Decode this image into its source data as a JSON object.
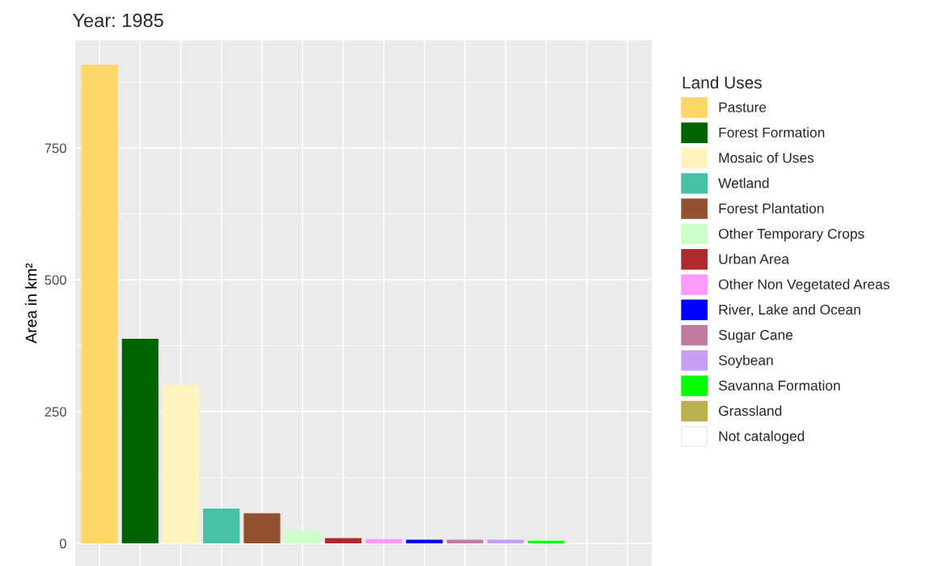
{
  "chart_data": {
    "type": "bar",
    "title": "Year: 1985",
    "ylabel": "Area in km²",
    "legend_title": "Land Uses",
    "categories": [
      null,
      null,
      null,
      null,
      null,
      null,
      null,
      null,
      null,
      null,
      null,
      null,
      null,
      null
    ],
    "series": [
      {
        "name": "Pasture",
        "color": "#fdd768",
        "values": [
          908,
          null,
          null,
          null,
          null,
          null,
          null,
          null,
          null,
          null,
          null,
          null,
          null,
          null
        ]
      },
      {
        "name": "Forest Formation",
        "color": "#006400",
        "values": [
          null,
          388,
          null,
          null,
          null,
          null,
          null,
          null,
          null,
          null,
          null,
          null,
          null,
          null
        ]
      },
      {
        "name": "Mosaic of Uses",
        "color": "#fff3bf",
        "values": [
          null,
          null,
          301,
          null,
          null,
          null,
          null,
          null,
          null,
          null,
          null,
          null,
          null,
          null
        ]
      },
      {
        "name": "Wetland",
        "color": "#45c2a5",
        "values": [
          null,
          null,
          null,
          66,
          null,
          null,
          null,
          null,
          null,
          null,
          null,
          null,
          null,
          null
        ]
      },
      {
        "name": "Forest Plantation",
        "color": "#935132",
        "values": [
          null,
          null,
          null,
          null,
          57,
          null,
          null,
          null,
          null,
          null,
          null,
          null,
          null,
          null
        ]
      },
      {
        "name": "Other Temporary Crops",
        "color": "#ccffcc",
        "values": [
          null,
          null,
          null,
          null,
          null,
          25,
          null,
          null,
          null,
          null,
          null,
          null,
          null,
          null
        ]
      },
      {
        "name": "Urban Area",
        "color": "#af2a2a",
        "values": [
          null,
          null,
          null,
          null,
          null,
          null,
          10,
          null,
          null,
          null,
          null,
          null,
          null,
          null
        ]
      },
      {
        "name": "Other Non Vegetated Areas",
        "color": "#ff99ff",
        "values": [
          null,
          null,
          null,
          null,
          null,
          null,
          null,
          8,
          null,
          null,
          null,
          null,
          null,
          null
        ]
      },
      {
        "name": "River, Lake and Ocean",
        "color": "#0000ff",
        "values": [
          null,
          null,
          null,
          null,
          null,
          null,
          null,
          null,
          7,
          null,
          null,
          null,
          null,
          null
        ]
      },
      {
        "name": "Sugar Cane",
        "color": "#c27ba0",
        "values": [
          null,
          null,
          null,
          null,
          null,
          null,
          null,
          null,
          null,
          7,
          null,
          null,
          null,
          null
        ]
      },
      {
        "name": "Soybean",
        "color": "#c59ff4",
        "values": [
          null,
          null,
          null,
          null,
          null,
          null,
          null,
          null,
          null,
          null,
          7,
          null,
          null,
          null
        ]
      },
      {
        "name": "Savanna Formation",
        "color": "#00ff00",
        "values": [
          null,
          null,
          null,
          null,
          null,
          null,
          null,
          null,
          null,
          null,
          null,
          5,
          null,
          null
        ]
      },
      {
        "name": "Grassland",
        "color": "#b8af4f",
        "values": [
          null,
          null,
          null,
          null,
          null,
          null,
          null,
          null,
          null,
          null,
          null,
          null,
          0,
          null
        ]
      },
      {
        "name": "Not cataloged",
        "color": "#ffffff",
        "values": [
          null,
          null,
          null,
          null,
          null,
          null,
          null,
          null,
          null,
          null,
          null,
          null,
          null,
          0
        ]
      }
    ],
    "ylim": [
      -43,
      954
    ],
    "yticks": [
      0,
      250,
      500,
      750
    ],
    "grid": true,
    "legend": "right",
    "tick_labels": "y"
  }
}
